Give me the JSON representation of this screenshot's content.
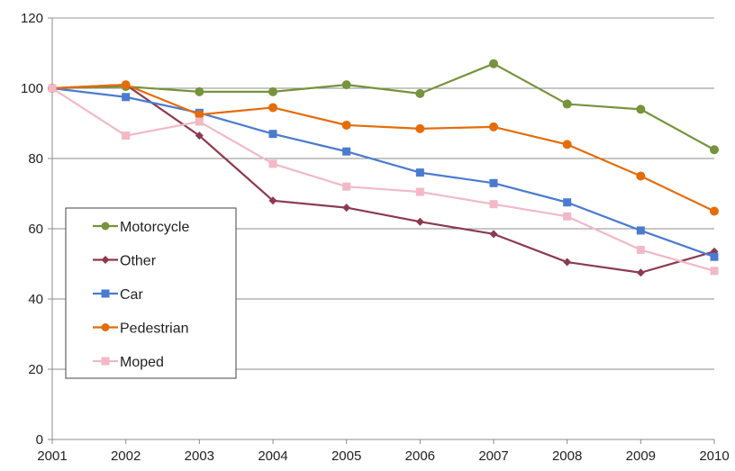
{
  "chart_data": {
    "type": "line",
    "title": "",
    "xlabel": "",
    "ylabel": "",
    "x": [
      "2001",
      "2002",
      "2003",
      "2004",
      "2005",
      "2006",
      "2007",
      "2008",
      "2009",
      "2010"
    ],
    "ylim": [
      0,
      120
    ],
    "yticks": [
      0,
      20,
      40,
      60,
      80,
      100,
      120
    ],
    "grid": "horizontal",
    "legend_position": "left",
    "series": [
      {
        "name": "Motorcycle",
        "color": "#77933c",
        "marker": "circle",
        "values": [
          100,
          100.5,
          99,
          99,
          101,
          98.5,
          107,
          95.5,
          94,
          82.5
        ]
      },
      {
        "name": "Other",
        "color": "#8b3a4f",
        "marker": "diamond",
        "values": [
          100,
          101,
          86.5,
          68,
          66,
          62,
          58.5,
          50.5,
          47.5,
          53.5
        ]
      },
      {
        "name": "Car",
        "color": "#4a7bd0",
        "marker": "square",
        "values": [
          100,
          97.5,
          93,
          87,
          82,
          76,
          73,
          67.5,
          59.5,
          52
        ]
      },
      {
        "name": "Pedestrian",
        "color": "#e46c0a",
        "marker": "circle",
        "values": [
          100,
          101,
          92.5,
          94.5,
          89.5,
          88.5,
          89,
          84,
          75,
          65
        ]
      },
      {
        "name": "Moped",
        "color": "#f2b8c6",
        "marker": "square",
        "values": [
          100,
          86.5,
          90.5,
          78.5,
          72,
          70.5,
          67,
          63.5,
          54,
          48
        ]
      }
    ]
  }
}
